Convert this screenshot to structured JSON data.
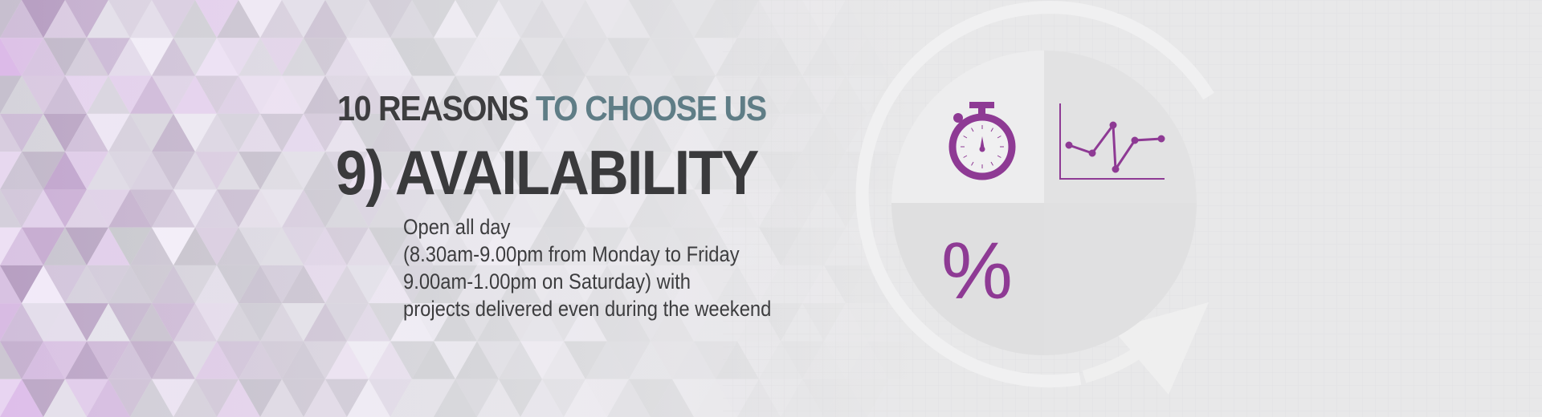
{
  "banner": {
    "title_prefix": "10 REASONS",
    "title_accent": "TO CHOOSE US",
    "heading": "9) AVAILABILITY",
    "body_lines": [
      "Open all day",
      "(8.30am-9.00pm from Monday to Friday",
      "9.00am-1.00pm on Saturday) with",
      "projects delivered even during the weekend"
    ],
    "percent_symbol": "%"
  },
  "colors": {
    "accent_purple": "#8e3a94",
    "accent_teal": "#5f7d86",
    "text_dark": "#3d3d3f",
    "background": "#e8e8e9"
  },
  "icons": [
    "stopwatch-icon",
    "line-chart-icon",
    "percent-icon",
    "circular-arrow-icon"
  ]
}
